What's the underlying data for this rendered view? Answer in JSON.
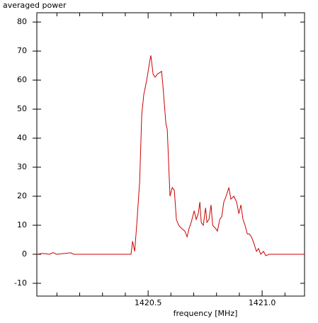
{
  "chart_data": {
    "type": "line",
    "title": "averaged power",
    "x_label": "frequency [MHz]",
    "xlim": [
      1420.012,
      1421.186
    ],
    "ylim": [
      -14.4,
      83.2
    ],
    "xticks": [
      1420.5,
      {
        "value": 1421.0,
        "label": "1421.0"
      }
    ],
    "xminorticks": [
      1420.1,
      1420.2,
      1420.3,
      1420.4,
      1420.6,
      1420.7,
      1420.8,
      1420.9,
      1421.1
    ],
    "yticks": [
      -10,
      0,
      10,
      20,
      30,
      40,
      50,
      60,
      70,
      80
    ],
    "series": [
      {
        "color": "#cc0000",
        "x": [
          1420.012,
          1420.037,
          1420.068,
          1420.084,
          1420.099,
          1420.161,
          1420.174,
          1420.317,
          1420.41,
          1420.425,
          1420.432,
          1420.441,
          1420.45,
          1420.463,
          1420.472,
          1420.481,
          1420.494,
          1420.506,
          1420.512,
          1420.522,
          1420.531,
          1420.54,
          1420.559,
          1420.565,
          1420.578,
          1420.584,
          1420.596,
          1420.606,
          1420.615,
          1420.624,
          1420.634,
          1420.646,
          1420.661,
          1420.671,
          1420.68,
          1420.689,
          1420.702,
          1420.711,
          1420.72,
          1420.727,
          1420.733,
          1420.742,
          1420.752,
          1420.758,
          1420.767,
          1420.776,
          1420.783,
          1420.795,
          1420.804,
          1420.814,
          1420.823,
          1420.832,
          1420.842,
          1420.854,
          1420.863,
          1420.876,
          1420.888,
          1420.898,
          1420.907,
          1420.916,
          1420.925,
          1420.935,
          1420.944,
          1420.953,
          1420.963,
          1420.975,
          1420.984,
          1420.994,
          1421.006,
          1421.016,
          1421.031,
          1421.186
        ],
        "values": [
          0,
          0.3,
          0,
          0.6,
          0,
          0.5,
          0,
          0,
          0,
          0,
          4.5,
          1,
          10,
          25,
          48,
          55,
          60,
          66,
          68.5,
          62,
          61,
          62,
          63,
          58,
          45,
          43,
          20,
          23,
          22,
          12,
          10,
          9,
          8,
          6,
          9,
          11,
          15,
          12,
          14,
          18,
          11,
          10,
          16,
          11,
          12,
          17,
          10,
          9,
          8,
          12,
          13,
          18,
          20,
          23,
          19,
          20,
          18,
          14,
          17,
          12,
          10,
          7,
          7,
          6,
          4,
          1,
          2,
          0,
          1,
          -0.5,
          0,
          0
        ]
      }
    ]
  }
}
